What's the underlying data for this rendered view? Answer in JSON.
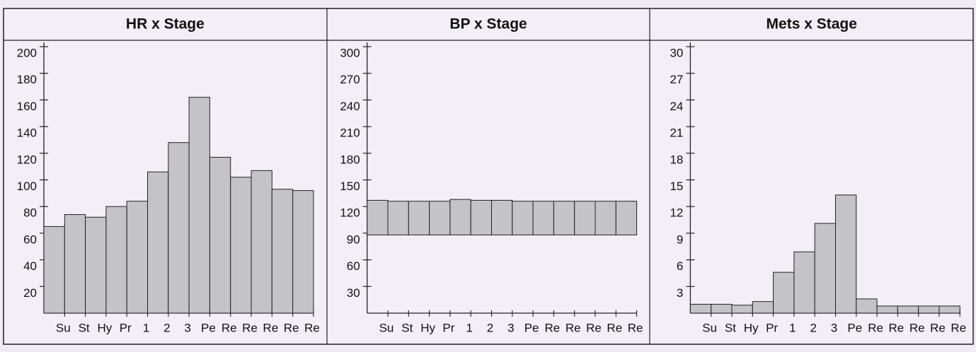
{
  "chart_data": [
    {
      "type": "bar",
      "title": "HR x Stage",
      "color": "#c4c4c8",
      "categories": [
        "Su",
        "St",
        "Hy",
        "Pr",
        "1",
        "2",
        "3",
        "Pe",
        "Re",
        "Re",
        "Re",
        "Re",
        "Re"
      ],
      "values": [
        65,
        74,
        72,
        80,
        84,
        106,
        128,
        162,
        117,
        102,
        107,
        93,
        92
      ],
      "ylim": [
        0,
        200
      ],
      "yticks": [
        20,
        40,
        60,
        80,
        100,
        120,
        140,
        160,
        180,
        200
      ]
    },
    {
      "type": "range",
      "title": "BP x Stage",
      "color": "#c4c4c8",
      "categories": [
        "Su",
        "St",
        "Hy",
        "Pr",
        "1",
        "2",
        "3",
        "Pe",
        "Re",
        "Re",
        "Re",
        "Re",
        "Re"
      ],
      "low": [
        88,
        88,
        88,
        88,
        88,
        88,
        88,
        88,
        88,
        88,
        88,
        88,
        88
      ],
      "high": [
        127,
        126,
        126,
        126,
        128,
        127,
        127,
        126,
        126,
        126,
        126,
        126,
        126
      ],
      "ylim": [
        0,
        300
      ],
      "yticks": [
        30,
        60,
        90,
        120,
        150,
        180,
        210,
        240,
        270,
        300
      ]
    },
    {
      "type": "bar",
      "title": "Mets x Stage",
      "color": "#c4c4c8",
      "categories": [
        "Su",
        "St",
        "Hy",
        "Pr",
        "1",
        "2",
        "3",
        "Pe",
        "Re",
        "Re",
        "Re",
        "Re",
        "Re"
      ],
      "values": [
        1.0,
        1.0,
        0.9,
        1.3,
        4.6,
        6.9,
        10.1,
        13.3,
        1.6,
        0.8,
        0.8,
        0.8,
        0.8
      ],
      "ylim": [
        0,
        30
      ],
      "yticks": [
        3,
        6,
        9,
        12,
        15,
        18,
        21,
        24,
        27,
        30
      ]
    }
  ]
}
